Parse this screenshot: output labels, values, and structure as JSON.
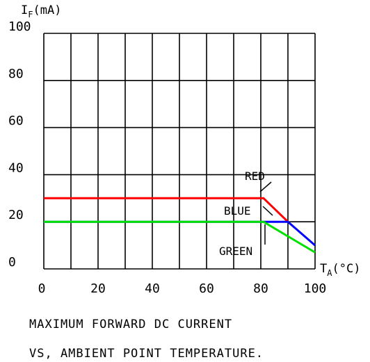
{
  "chart_data": {
    "type": "line",
    "ylabel_main": "I",
    "ylabel_sub": "F",
    "ylabel_unit": "(mA)",
    "xlabel_main": "T",
    "xlabel_sub": "A",
    "xlabel_unit": "(°C)",
    "caption_line1": "MAXIMUM FORWARD DC CURRENT",
    "caption_line2": "VS, AMBIENT POINT TEMPERATURE.",
    "xlim": [
      0,
      100
    ],
    "ylim": [
      0,
      100
    ],
    "x_ticks": [
      0,
      20,
      40,
      60,
      80,
      100
    ],
    "x_tick_labels": [
      "0",
      "20",
      "40",
      "60",
      "80",
      "100"
    ],
    "y_ticks": [
      0,
      20,
      40,
      60,
      80,
      100
    ],
    "y_tick_labels": [
      "0",
      "20",
      "40",
      "60",
      "80",
      "100"
    ],
    "grid": true,
    "series": [
      {
        "name": "RED",
        "color": "#ff0000",
        "x": [
          0,
          81,
          90
        ],
        "y": [
          30,
          30,
          20
        ]
      },
      {
        "name": "BLUE",
        "color": "#0000ff",
        "x": [
          0,
          81,
          90,
          100
        ],
        "y": [
          20,
          20,
          20,
          10
        ]
      },
      {
        "name": "GREEN",
        "color": "#00e000",
        "x": [
          0,
          81,
          100
        ],
        "y": [
          20,
          20,
          7
        ]
      }
    ]
  }
}
